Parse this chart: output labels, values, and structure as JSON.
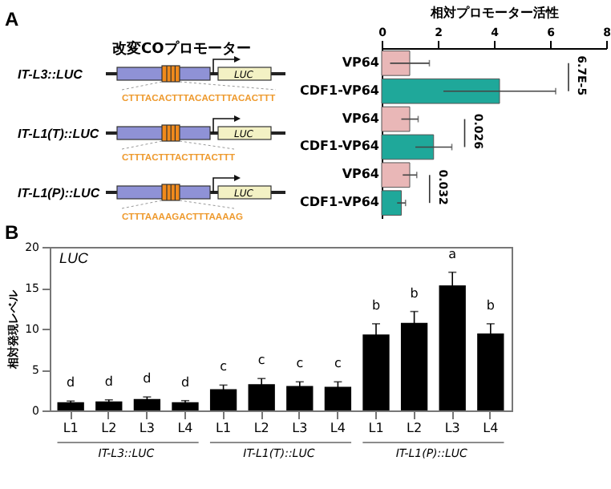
{
  "chart_data": [
    {
      "type": "other",
      "title": "改変COプロモーター",
      "categories": [
        "IT-L3::LUC",
        "IT-L1(T)::LUC",
        "IT-L1(P)::LUC"
      ],
      "annotations": [
        "A",
        "CTTTACACTTTACACTTTACACTTT",
        "CTTTACTTTACTTTACTTT",
        "CTTTAAAAGACTTTAAAAG",
        "LUC",
        "LUC",
        "LUC"
      ]
    },
    {
      "type": "bar",
      "orientation": "horizontal",
      "xlabel": "相対プロモーター活性",
      "categories": [
        "VP64",
        "CDF1-VP64",
        "VP64",
        "CDF1-VP64",
        "VP64",
        "CDF1-VP64"
      ],
      "values": [
        1.0,
        4.2,
        1.0,
        1.85,
        1.0,
        0.7
      ],
      "errors": [
        0.7,
        2.0,
        0.3,
        0.65,
        0.25,
        0.15
      ],
      "colors": [
        "#e9b7b7",
        "#1fa89a",
        "#e9b7b7",
        "#1fa89a",
        "#e9b7b7",
        "#1fa89a"
      ],
      "xlim": [
        0,
        8
      ],
      "xticks": [
        0,
        2,
        4,
        6,
        8
      ],
      "annotations": [
        "6.7E-5",
        "0.026",
        "0.032"
      ]
    },
    {
      "type": "bar",
      "title": "LUC",
      "ylabel": "相対発現レベル",
      "categories": [
        "L1",
        "L2",
        "L3",
        "L4",
        "L1",
        "L2",
        "L3",
        "L4",
        "L1",
        "L2",
        "L3",
        "L4"
      ],
      "values": [
        1.0,
        1.1,
        1.4,
        1.0,
        2.6,
        3.2,
        3.0,
        2.9,
        9.3,
        10.7,
        15.3,
        9.4
      ],
      "errors": [
        0.15,
        0.2,
        0.25,
        0.2,
        0.5,
        0.7,
        0.5,
        0.6,
        1.3,
        1.4,
        1.6,
        1.2
      ],
      "color": "#000000",
      "ylim": [
        0,
        20
      ],
      "yticks": [
        0,
        5,
        10,
        15,
        20
      ],
      "value_labels": [
        "d",
        "d",
        "d",
        "d",
        "c",
        "c",
        "c",
        "c",
        "b",
        "b",
        "a",
        "b"
      ],
      "annotations": [
        "B",
        "IT-L3::LUC",
        "IT-L1(T)::LUC",
        "IT-L1(P)::LUC"
      ]
    }
  ]
}
